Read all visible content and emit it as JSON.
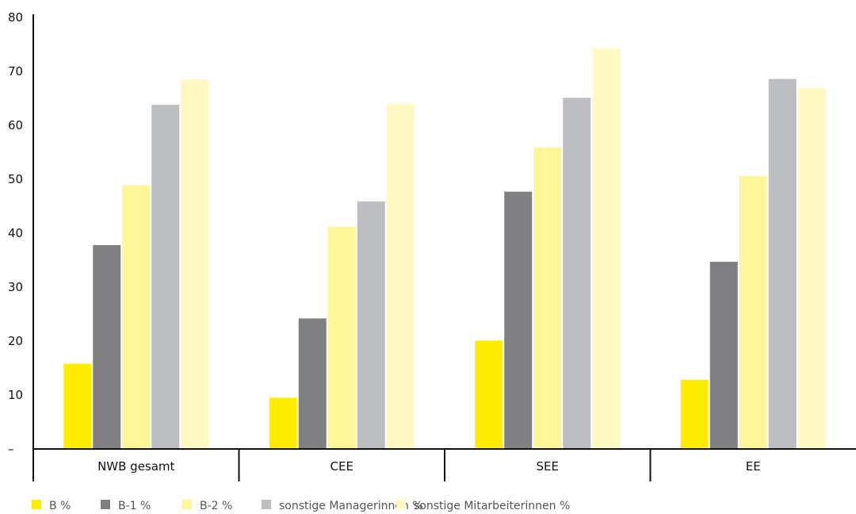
{
  "chart_data": {
    "type": "bar",
    "categories": [
      "NWB gesamt",
      "CEE",
      "SEE",
      "EE"
    ],
    "series": [
      {
        "name": "B %",
        "color": "#FFED00",
        "values": [
          15.8,
          9.5,
          20.1,
          12.8
        ]
      },
      {
        "name": "B-1 %",
        "color": "#808083",
        "values": [
          37.8,
          24.2,
          47.7,
          34.7
        ]
      },
      {
        "name": "B-2 %",
        "color": "#FFF59A",
        "values": [
          48.9,
          41.2,
          55.9,
          50.6
        ]
      },
      {
        "name": "sonstige Managerinnen %",
        "color": "#BDBEC1",
        "values": [
          63.8,
          45.9,
          65.1,
          68.6
        ]
      },
      {
        "name": "sonstige Mitarbeiterinnen %",
        "color": "#FFF9C4",
        "values": [
          68.5,
          64.0,
          74.3,
          66.9
        ]
      }
    ],
    "ylim": [
      0,
      80
    ],
    "yticks": [
      "–",
      "10",
      "20",
      "30",
      "40",
      "50",
      "60",
      "70",
      "80"
    ],
    "grid": false,
    "legend_position": "bottom"
  }
}
